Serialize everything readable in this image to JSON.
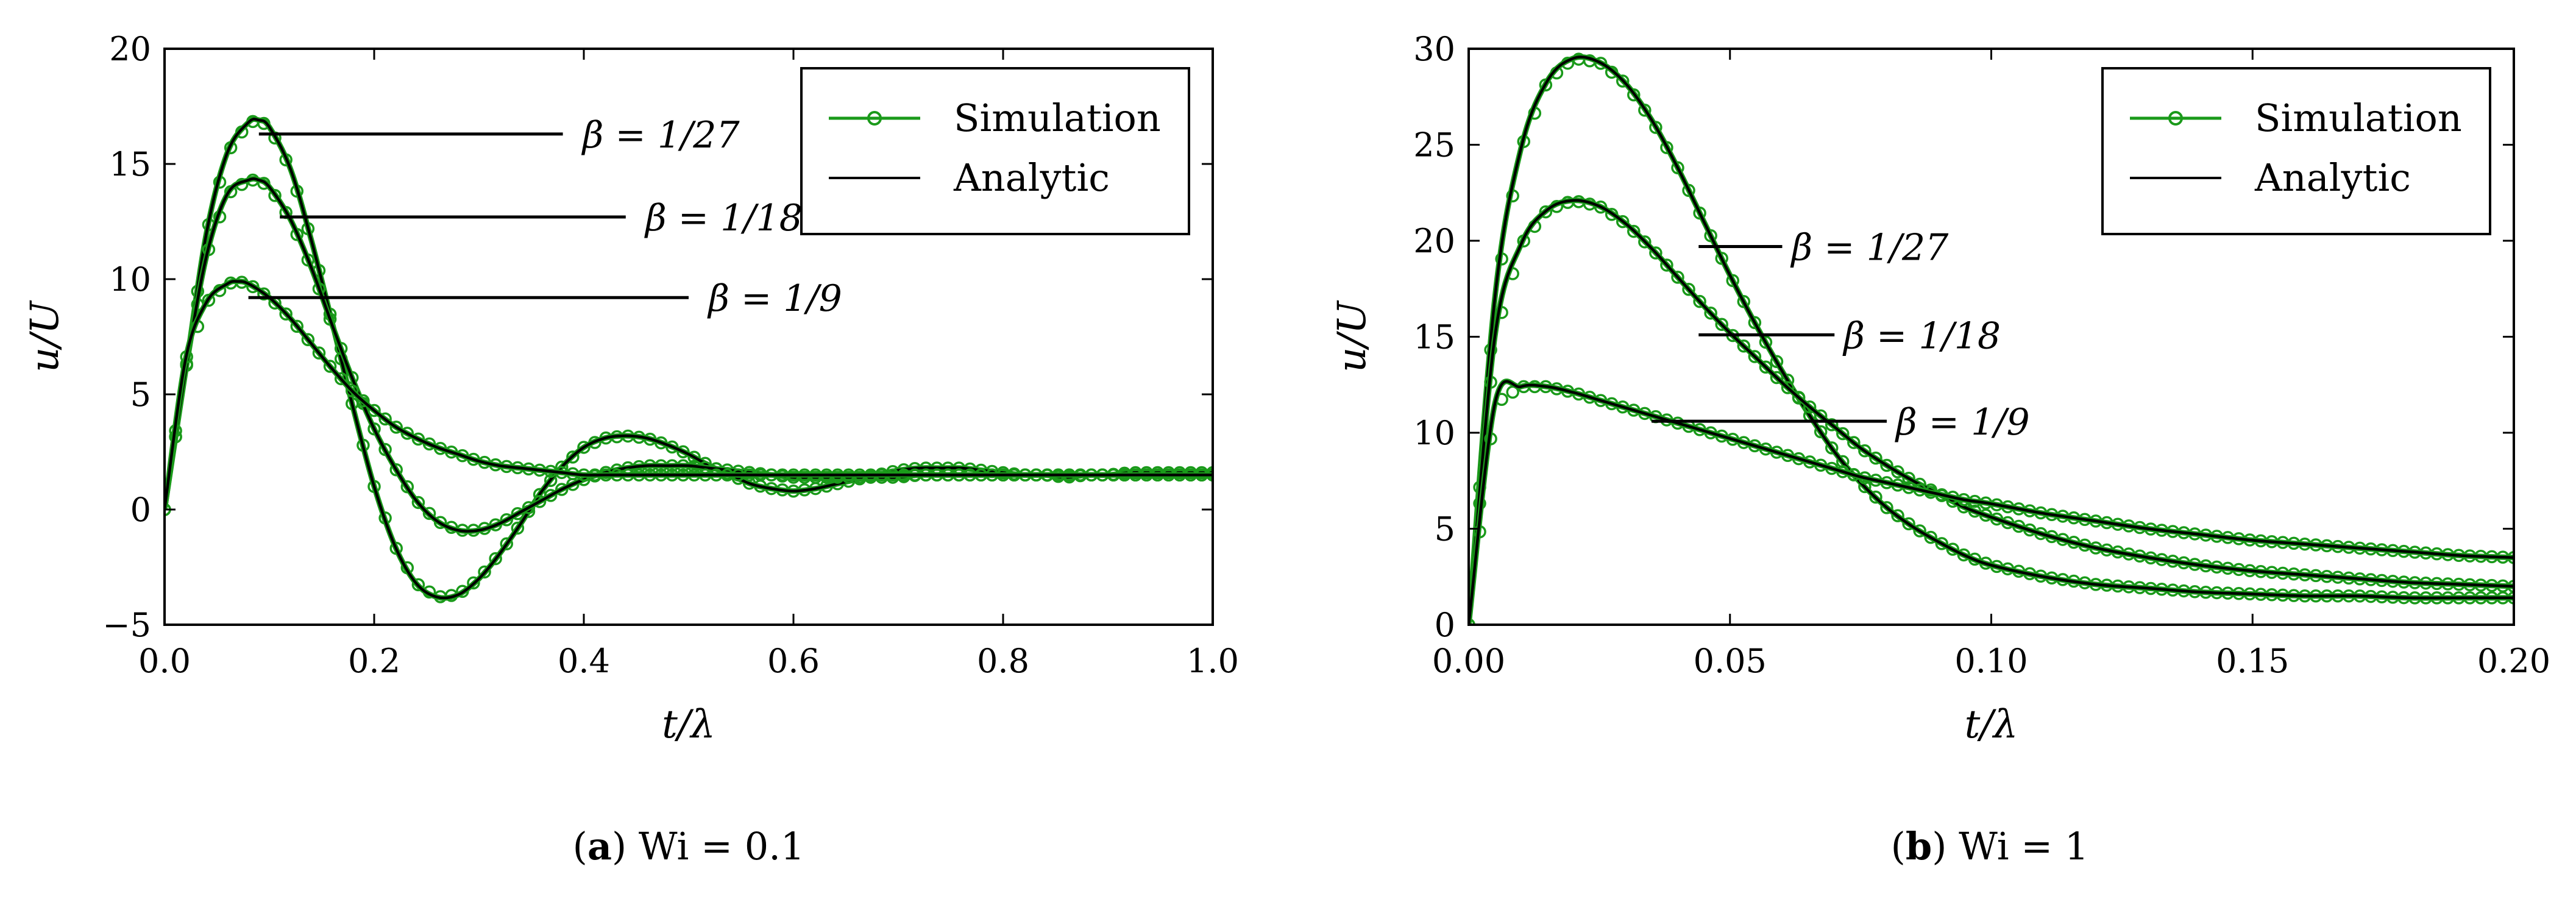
{
  "chart_data": [
    {
      "type": "line",
      "panel": "a",
      "caption": {
        "label": "a",
        "text": "Wi = 0.1"
      },
      "xlabel": "t/λ",
      "ylabel": "u/U",
      "xlim": [
        0.0,
        1.0
      ],
      "ylim": [
        -5,
        20
      ],
      "xticks": [
        0.0,
        0.2,
        0.4,
        0.6,
        0.8,
        1.0
      ],
      "xtick_labels": [
        "0.0",
        "0.2",
        "0.4",
        "0.6",
        "0.8",
        "1.0"
      ],
      "yticks": [
        -5,
        0,
        5,
        10,
        15,
        20
      ],
      "ytick_labels": [
        "−5",
        "0",
        "5",
        "10",
        "15",
        "20"
      ],
      "legend": {
        "position": "top-right",
        "entries": [
          "Simulation",
          "Analytic"
        ]
      },
      "series": [
        {
          "name": "β = 1/27",
          "x": [
            0.0,
            0.02,
            0.04,
            0.06,
            0.08,
            0.09,
            0.1,
            0.12,
            0.14,
            0.16,
            0.18,
            0.2,
            0.22,
            0.24,
            0.26,
            0.28,
            0.3,
            0.32,
            0.34,
            0.36,
            0.38,
            0.4,
            0.42,
            0.44,
            0.46,
            0.48,
            0.5,
            0.52,
            0.54,
            0.56,
            0.58,
            0.6,
            0.62,
            0.64,
            0.66,
            0.68,
            0.7,
            0.72,
            0.74,
            0.76,
            0.78,
            0.8,
            0.82,
            0.84,
            0.86,
            0.88,
            0.9,
            0.92,
            0.94,
            0.96,
            0.98,
            1.0
          ],
          "values": [
            0.0,
            6.0,
            12.0,
            15.5,
            16.8,
            16.9,
            16.6,
            14.8,
            11.7,
            8.1,
            4.4,
            1.0,
            -1.6,
            -3.2,
            -3.8,
            -3.7,
            -3.0,
            -1.9,
            -0.6,
            0.8,
            1.9,
            2.7,
            3.1,
            3.2,
            3.1,
            2.8,
            2.4,
            1.9,
            1.5,
            1.1,
            0.9,
            0.8,
            0.9,
            1.1,
            1.3,
            1.5,
            1.7,
            1.8,
            1.8,
            1.8,
            1.7,
            1.6,
            1.5,
            1.5,
            1.4,
            1.5,
            1.5,
            1.6,
            1.6,
            1.6,
            1.6,
            1.6
          ]
        },
        {
          "name": "β = 1/18",
          "x": [
            0.0,
            0.02,
            0.04,
            0.06,
            0.08,
            0.09,
            0.1,
            0.12,
            0.14,
            0.16,
            0.18,
            0.2,
            0.22,
            0.24,
            0.26,
            0.28,
            0.3,
            0.32,
            0.34,
            0.36,
            0.38,
            0.4,
            0.42,
            0.44,
            0.46,
            0.48,
            0.5,
            0.52,
            0.54,
            0.56,
            0.58,
            0.6,
            0.62,
            0.64,
            0.66,
            0.68,
            0.7,
            0.72,
            0.74,
            0.76,
            0.78,
            0.8,
            0.82,
            0.84,
            0.86,
            0.88,
            0.9,
            0.92,
            0.94,
            0.96,
            0.98,
            1.0
          ],
          "values": [
            0.0,
            6.0,
            11.0,
            13.7,
            14.3,
            14.3,
            14.0,
            12.6,
            10.5,
            8.0,
            5.6,
            3.5,
            1.8,
            0.4,
            -0.5,
            -0.9,
            -0.9,
            -0.6,
            -0.1,
            0.4,
            0.9,
            1.3,
            1.6,
            1.8,
            1.9,
            1.9,
            1.9,
            1.8,
            1.7,
            1.6,
            1.5,
            1.4,
            1.4,
            1.4,
            1.4,
            1.4,
            1.4,
            1.5,
            1.5,
            1.5,
            1.5,
            1.5,
            1.5,
            1.5,
            1.5,
            1.5,
            1.5,
            1.5,
            1.5,
            1.5,
            1.5,
            1.5
          ]
        },
        {
          "name": "β = 1/9",
          "x": [
            0.0,
            0.02,
            0.04,
            0.06,
            0.07,
            0.08,
            0.1,
            0.12,
            0.14,
            0.16,
            0.18,
            0.2,
            0.22,
            0.24,
            0.26,
            0.28,
            0.3,
            0.32,
            0.34,
            0.36,
            0.38,
            0.4,
            0.42,
            0.44,
            0.46,
            0.48,
            0.5,
            0.52,
            0.54,
            0.56,
            0.58,
            0.6,
            0.62,
            0.64,
            0.66,
            0.68,
            0.7,
            0.72,
            0.74,
            0.76,
            0.78,
            0.8,
            0.82,
            0.84,
            0.86,
            0.88,
            0.9,
            0.92,
            0.94,
            0.96,
            0.98,
            1.0
          ],
          "values": [
            0.0,
            6.5,
            9.0,
            9.8,
            9.9,
            9.8,
            9.2,
            8.3,
            7.2,
            6.1,
            5.1,
            4.3,
            3.6,
            3.1,
            2.7,
            2.4,
            2.1,
            1.9,
            1.8,
            1.7,
            1.6,
            1.5,
            1.5,
            1.5,
            1.5,
            1.5,
            1.5,
            1.5,
            1.5,
            1.5,
            1.5,
            1.5,
            1.5,
            1.5,
            1.5,
            1.5,
            1.5,
            1.5,
            1.5,
            1.5,
            1.5,
            1.5,
            1.5,
            1.5,
            1.5,
            1.5,
            1.5,
            1.5,
            1.5,
            1.5,
            1.5,
            1.5
          ]
        }
      ],
      "annotations": [
        {
          "text": "β = 1/27",
          "x": 0.39,
          "y": 16.3,
          "x_start": 0.09,
          "x_end": 0.38
        },
        {
          "text": "β = 1/18",
          "x": 0.45,
          "y": 12.7,
          "x_start": 0.11,
          "x_end": 0.44
        },
        {
          "text": "β = 1/9",
          "x": 0.51,
          "y": 9.2,
          "x_start": 0.08,
          "x_end": 0.5
        }
      ]
    },
    {
      "type": "line",
      "panel": "b",
      "caption": {
        "label": "b",
        "text": "Wi = 1"
      },
      "xlabel": "t/λ",
      "ylabel": "u/U",
      "xlim": [
        0.0,
        0.2
      ],
      "ylim": [
        0,
        30
      ],
      "xticks": [
        0.0,
        0.05,
        0.1,
        0.15,
        0.2
      ],
      "xtick_labels": [
        "0.00",
        "0.05",
        "0.10",
        "0.15",
        "0.20"
      ],
      "yticks": [
        0,
        5,
        10,
        15,
        20,
        25,
        30
      ],
      "ytick_labels": [
        "0",
        "5",
        "10",
        "15",
        "20",
        "25",
        "30"
      ],
      "legend": {
        "position": "top-right",
        "entries": [
          "Simulation",
          "Analytic"
        ]
      },
      "series": [
        {
          "name": "β = 1/27",
          "x": [
            0.0,
            0.005,
            0.01,
            0.015,
            0.02,
            0.025,
            0.03,
            0.035,
            0.04,
            0.045,
            0.05,
            0.055,
            0.06,
            0.065,
            0.07,
            0.075,
            0.08,
            0.085,
            0.09,
            0.095,
            0.1,
            0.11,
            0.12,
            0.13,
            0.14,
            0.15,
            0.16,
            0.17,
            0.18,
            0.19,
            0.2
          ],
          "values": [
            0.0,
            17.0,
            24.8,
            28.3,
            29.5,
            29.3,
            28.2,
            26.3,
            23.8,
            21.0,
            18.2,
            15.6,
            13.2,
            11.0,
            9.0,
            7.4,
            6.1,
            5.1,
            4.3,
            3.6,
            3.1,
            2.5,
            2.1,
            1.9,
            1.7,
            1.6,
            1.5,
            1.5,
            1.4,
            1.4,
            1.4
          ]
        },
        {
          "name": "β = 1/18",
          "x": [
            0.0,
            0.005,
            0.01,
            0.015,
            0.02,
            0.025,
            0.03,
            0.035,
            0.04,
            0.045,
            0.05,
            0.055,
            0.06,
            0.065,
            0.07,
            0.075,
            0.08,
            0.085,
            0.09,
            0.095,
            0.1,
            0.11,
            0.12,
            0.13,
            0.14,
            0.15,
            0.16,
            0.17,
            0.18,
            0.19,
            0.2
          ],
          "values": [
            0.0,
            15.0,
            19.8,
            21.6,
            22.1,
            21.8,
            20.9,
            19.6,
            18.1,
            16.6,
            15.2,
            13.9,
            12.6,
            11.4,
            10.3,
            9.2,
            8.3,
            7.5,
            6.8,
            6.1,
            5.6,
            4.7,
            4.0,
            3.5,
            3.1,
            2.8,
            2.6,
            2.4,
            2.2,
            2.1,
            2.0
          ]
        },
        {
          "name": "β = 1/9",
          "x": [
            0.0,
            0.005,
            0.01,
            0.015,
            0.02,
            0.025,
            0.03,
            0.035,
            0.04,
            0.045,
            0.05,
            0.055,
            0.06,
            0.065,
            0.07,
            0.075,
            0.08,
            0.085,
            0.09,
            0.095,
            0.1,
            0.11,
            0.12,
            0.13,
            0.14,
            0.15,
            0.16,
            0.17,
            0.18,
            0.19,
            0.2
          ],
          "values": [
            0.0,
            11.5,
            12.4,
            12.4,
            12.1,
            11.7,
            11.3,
            10.9,
            10.5,
            10.1,
            9.7,
            9.3,
            8.9,
            8.5,
            8.1,
            7.7,
            7.4,
            7.1,
            6.8,
            6.5,
            6.3,
            5.8,
            5.4,
            5.0,
            4.7,
            4.4,
            4.2,
            4.0,
            3.8,
            3.6,
            3.5
          ]
        }
      ],
      "annotations": [
        {
          "text": "β = 1/27",
          "x": 0.06,
          "y": 19.7,
          "x_start": 0.044,
          "x_end": 0.06
        },
        {
          "text": "β = 1/18",
          "x": 0.07,
          "y": 15.1,
          "x_start": 0.044,
          "x_end": 0.07
        },
        {
          "text": "β = 1/9",
          "x": 0.08,
          "y": 10.6,
          "x_start": 0.035,
          "x_end": 0.08
        }
      ]
    }
  ],
  "colors": {
    "simulation": "#1a9a1a",
    "analytic": "#000000",
    "axis": "#000000"
  }
}
